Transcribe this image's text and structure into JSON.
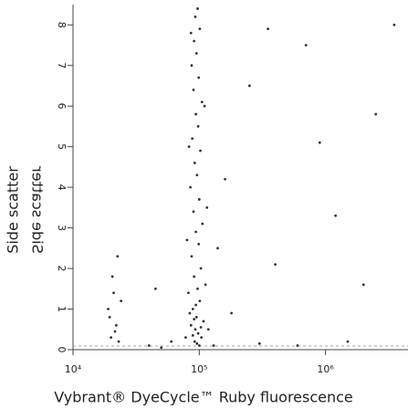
{
  "chart_data": {
    "type": "scatter",
    "x_label": "Vybrant® DyeCycle™ Ruby fluorescence",
    "y_label": "Side scatter",
    "xscale": "log",
    "xlim": [
      10000,
      4500000
    ],
    "ylim": [
      0,
      8.5
    ],
    "xticks": [
      {
        "value": 10000,
        "label": "10⁴"
      },
      {
        "value": 100000,
        "label": "10⁵"
      },
      {
        "value": 1000000,
        "label": "10⁶"
      }
    ],
    "yticks": [
      0,
      1,
      2,
      3,
      4,
      5,
      6,
      7,
      8
    ],
    "color": "#333333",
    "x": [
      92000,
      98000,
      86000,
      104000,
      95000,
      89000,
      101000,
      93000,
      108000,
      84000,
      97000,
      91000,
      103000,
      87000,
      99000,
      94000,
      106000,
      90000,
      100000,
      85000,
      96000,
      92000,
      102000,
      88000,
      98000,
      94000,
      105000,
      90000,
      99000,
      87000,
      95000,
      91000,
      101000,
      93000,
      97000,
      82000,
      112000,
      80000,
      115000,
      83000,
      110000,
      86000,
      118000,
      78000,
      100000,
      94000,
      89000,
      103000,
      96000,
      91000,
      20000,
      22000,
      19000,
      21000,
      23000,
      20500,
      19500,
      22500,
      21500,
      24000,
      160000,
      250000,
      400000,
      700000,
      1200000,
      2500000,
      3500000,
      180000,
      300000,
      600000,
      1500000,
      140000,
      350000,
      900000,
      2000000,
      40000,
      60000,
      50000,
      130000,
      45000
    ],
    "values": [
      0.2,
      0.4,
      0.6,
      0.3,
      0.8,
      1.0,
      1.2,
      0.5,
      0.7,
      0.9,
      1.5,
      1.8,
      2.0,
      2.3,
      2.6,
      2.9,
      3.1,
      3.4,
      3.7,
      4.0,
      4.3,
      4.6,
      4.9,
      5.2,
      5.5,
      5.8,
      6.1,
      6.4,
      6.7,
      7.0,
      7.3,
      7.6,
      7.9,
      8.2,
      8.4,
      1.4,
      1.6,
      2.7,
      3.5,
      5.0,
      6.0,
      7.8,
      0.5,
      0.3,
      0.1,
      1.1,
      0.35,
      0.55,
      0.15,
      0.75,
      0.3,
      0.6,
      1.0,
      1.4,
      0.2,
      1.8,
      0.8,
      2.3,
      0.45,
      1.2,
      4.2,
      6.5,
      2.1,
      7.5,
      3.3,
      5.8,
      8.0,
      0.9,
      0.15,
      0.1,
      0.2,
      2.5,
      7.9,
      5.1,
      1.6,
      0.1,
      0.2,
      0.05,
      0.1,
      1.5
    ]
  }
}
